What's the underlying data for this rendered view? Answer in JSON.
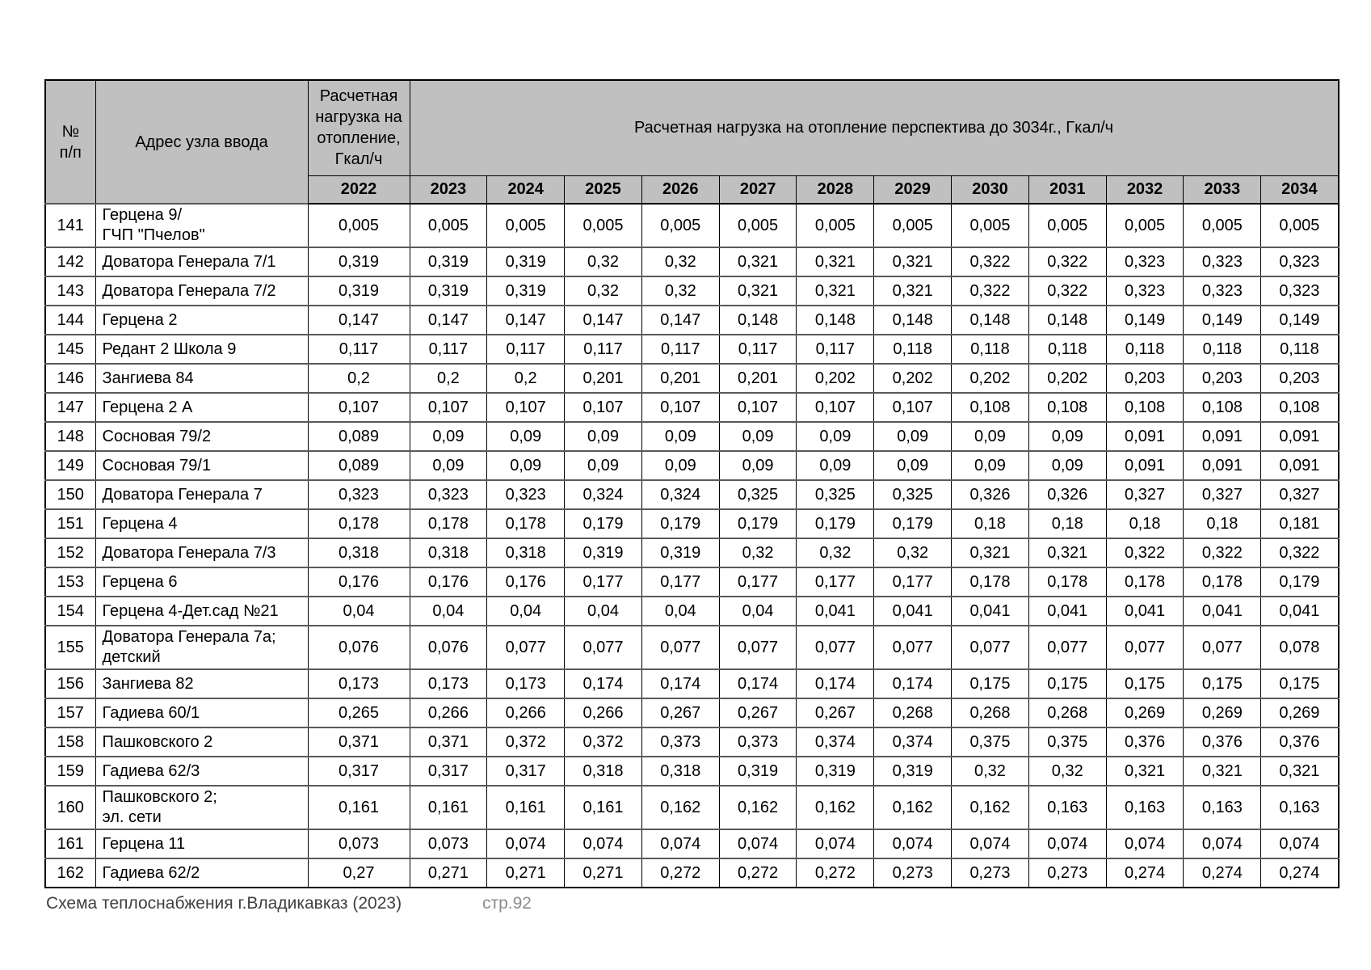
{
  "colors": {
    "header_bg": "#c0c0c0",
    "table_border": "#000000",
    "row_divider": "#595959",
    "footer_text": "#404040",
    "page_number_text": "#8c8c8c"
  },
  "footer": {
    "document_title": "Схема теплоснабжения г.Владикавказ (2023)",
    "page_number": "стр.92"
  },
  "table": {
    "header": {
      "col_num": "№\nп/п",
      "col_address": "Адрес узла ввода",
      "col_load_2022": "Расчетная нагрузка на отопление, Гкал/ч",
      "col_perspective": "Расчетная нагрузка на отопление перспектива до 3034г., Гкал/ч",
      "base_year": "2022",
      "years": [
        "2023",
        "2024",
        "2025",
        "2026",
        "2027",
        "2028",
        "2029",
        "2030",
        "2031",
        "2032",
        "2033",
        "2034"
      ]
    },
    "rows": [
      {
        "num": "141",
        "address": "Герцена 9/\nГЧП \"Пчелов\"",
        "values": [
          "0,005",
          "0,005",
          "0,005",
          "0,005",
          "0,005",
          "0,005",
          "0,005",
          "0,005",
          "0,005",
          "0,005",
          "0,005",
          "0,005",
          "0,005"
        ]
      },
      {
        "num": "142",
        "address": "Доватора Генерала 7/1",
        "values": [
          "0,319",
          "0,319",
          "0,319",
          "0,32",
          "0,32",
          "0,321",
          "0,321",
          "0,321",
          "0,322",
          "0,322",
          "0,323",
          "0,323",
          "0,323"
        ]
      },
      {
        "num": "143",
        "address": "Доватора Генерала 7/2",
        "values": [
          "0,319",
          "0,319",
          "0,319",
          "0,32",
          "0,32",
          "0,321",
          "0,321",
          "0,321",
          "0,322",
          "0,322",
          "0,323",
          "0,323",
          "0,323"
        ]
      },
      {
        "num": "144",
        "address": "Герцена 2",
        "values": [
          "0,147",
          "0,147",
          "0,147",
          "0,147",
          "0,147",
          "0,148",
          "0,148",
          "0,148",
          "0,148",
          "0,148",
          "0,149",
          "0,149",
          "0,149"
        ]
      },
      {
        "num": "145",
        "address": "Редант 2 Школа 9",
        "values": [
          "0,117",
          "0,117",
          "0,117",
          "0,117",
          "0,117",
          "0,117",
          "0,117",
          "0,118",
          "0,118",
          "0,118",
          "0,118",
          "0,118",
          "0,118"
        ]
      },
      {
        "num": "146",
        "address": "Зангиева 84",
        "values": [
          "0,2",
          "0,2",
          "0,2",
          "0,201",
          "0,201",
          "0,201",
          "0,202",
          "0,202",
          "0,202",
          "0,202",
          "0,203",
          "0,203",
          "0,203"
        ]
      },
      {
        "num": "147",
        "address": "Герцена 2 А",
        "values": [
          "0,107",
          "0,107",
          "0,107",
          "0,107",
          "0,107",
          "0,107",
          "0,107",
          "0,107",
          "0,108",
          "0,108",
          "0,108",
          "0,108",
          "0,108"
        ]
      },
      {
        "num": "148",
        "address": "Сосновая 79/2",
        "values": [
          "0,089",
          "0,09",
          "0,09",
          "0,09",
          "0,09",
          "0,09",
          "0,09",
          "0,09",
          "0,09",
          "0,09",
          "0,091",
          "0,091",
          "0,091"
        ]
      },
      {
        "num": "149",
        "address": "Сосновая 79/1",
        "values": [
          "0,089",
          "0,09",
          "0,09",
          "0,09",
          "0,09",
          "0,09",
          "0,09",
          "0,09",
          "0,09",
          "0,09",
          "0,091",
          "0,091",
          "0,091"
        ]
      },
      {
        "num": "150",
        "address": "Доватора Генерала 7",
        "values": [
          "0,323",
          "0,323",
          "0,323",
          "0,324",
          "0,324",
          "0,325",
          "0,325",
          "0,325",
          "0,326",
          "0,326",
          "0,327",
          "0,327",
          "0,327"
        ]
      },
      {
        "num": "151",
        "address": "Герцена 4",
        "values": [
          "0,178",
          "0,178",
          "0,178",
          "0,179",
          "0,179",
          "0,179",
          "0,179",
          "0,179",
          "0,18",
          "0,18",
          "0,18",
          "0,18",
          "0,181"
        ]
      },
      {
        "num": "152",
        "address": "Доватора Генерала 7/3",
        "values": [
          "0,318",
          "0,318",
          "0,318",
          "0,319",
          "0,319",
          "0,32",
          "0,32",
          "0,32",
          "0,321",
          "0,321",
          "0,322",
          "0,322",
          "0,322"
        ]
      },
      {
        "num": "153",
        "address": "Герцена 6",
        "values": [
          "0,176",
          "0,176",
          "0,176",
          "0,177",
          "0,177",
          "0,177",
          "0,177",
          "0,177",
          "0,178",
          "0,178",
          "0,178",
          "0,178",
          "0,179"
        ]
      },
      {
        "num": "154",
        "address": "Герцена 4-Дет.сад №21",
        "values": [
          "0,04",
          "0,04",
          "0,04",
          "0,04",
          "0,04",
          "0,04",
          "0,041",
          "0,041",
          "0,041",
          "0,041",
          "0,041",
          "0,041",
          "0,041"
        ]
      },
      {
        "num": "155",
        "address": "Доватора Генерала 7а;\nдетский",
        "values": [
          "0,076",
          "0,076",
          "0,077",
          "0,077",
          "0,077",
          "0,077",
          "0,077",
          "0,077",
          "0,077",
          "0,077",
          "0,077",
          "0,077",
          "0,078"
        ]
      },
      {
        "num": "156",
        "address": "Зангиева 82",
        "values": [
          "0,173",
          "0,173",
          "0,173",
          "0,174",
          "0,174",
          "0,174",
          "0,174",
          "0,174",
          "0,175",
          "0,175",
          "0,175",
          "0,175",
          "0,175"
        ]
      },
      {
        "num": "157",
        "address": "Гадиева 60/1",
        "values": [
          "0,265",
          "0,266",
          "0,266",
          "0,266",
          "0,267",
          "0,267",
          "0,267",
          "0,268",
          "0,268",
          "0,268",
          "0,269",
          "0,269",
          "0,269"
        ]
      },
      {
        "num": "158",
        "address": "Пашковского 2",
        "values": [
          "0,371",
          "0,371",
          "0,372",
          "0,372",
          "0,373",
          "0,373",
          "0,374",
          "0,374",
          "0,375",
          "0,375",
          "0,376",
          "0,376",
          "0,376"
        ]
      },
      {
        "num": "159",
        "address": "Гадиева 62/3",
        "values": [
          "0,317",
          "0,317",
          "0,317",
          "0,318",
          "0,318",
          "0,319",
          "0,319",
          "0,319",
          "0,32",
          "0,32",
          "0,321",
          "0,321",
          "0,321"
        ]
      },
      {
        "num": "160",
        "address": "Пашковского 2;\nэл. сети",
        "values": [
          "0,161",
          "0,161",
          "0,161",
          "0,161",
          "0,162",
          "0,162",
          "0,162",
          "0,162",
          "0,162",
          "0,163",
          "0,163",
          "0,163",
          "0,163"
        ]
      },
      {
        "num": "161",
        "address": "Герцена 11",
        "values": [
          "0,073",
          "0,073",
          "0,074",
          "0,074",
          "0,074",
          "0,074",
          "0,074",
          "0,074",
          "0,074",
          "0,074",
          "0,074",
          "0,074",
          "0,074"
        ]
      },
      {
        "num": "162",
        "address": "Гадиева 62/2",
        "values": [
          "0,27",
          "0,271",
          "0,271",
          "0,271",
          "0,272",
          "0,272",
          "0,272",
          "0,273",
          "0,273",
          "0,273",
          "0,274",
          "0,274",
          "0,274"
        ]
      }
    ]
  }
}
